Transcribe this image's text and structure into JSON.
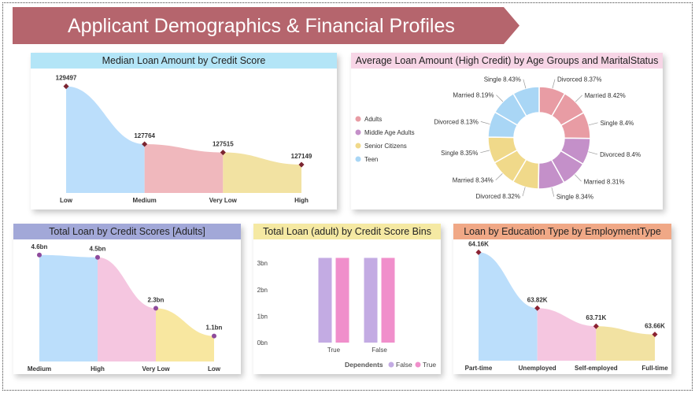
{
  "page": {
    "title": "Applicant Demographics & Financial Profiles",
    "banner_color": "#b5656d"
  },
  "chart_data": [
    {
      "id": "median_credit",
      "type": "area",
      "title": "Median Loan Amount by Credit Score",
      "header_color": "#b3e5f7",
      "categories": [
        "Low",
        "Medium",
        "Very Low",
        "High"
      ],
      "values": [
        129497,
        127764,
        127515,
        127149
      ],
      "value_labels": [
        "129497",
        "127764",
        "127515",
        "127149"
      ],
      "ylim": [
        126300,
        129700
      ],
      "colors": [
        "#bbdefb",
        "#f0b8bd",
        "#f2e2a2",
        "#d5a3c8"
      ],
      "marker_color": "#7a2430"
    },
    {
      "id": "avg_age_marital",
      "type": "pie",
      "title": "Average Loan Amount (High Credit) by Age Groups and MaritalStatus",
      "header_color": "#f7d5e6",
      "legend": [
        {
          "name": "Adults",
          "color": "#e89ca4"
        },
        {
          "name": "Middle Age Adults",
          "color": "#c490c9"
        },
        {
          "name": "Senior Citizens",
          "color": "#f0d98a"
        },
        {
          "name": "Teen",
          "color": "#a9d6f5"
        }
      ],
      "slices": [
        {
          "label": "Divorced 8.37%",
          "value": 8.37,
          "group": "Adults"
        },
        {
          "label": "Married 8.42%",
          "value": 8.42,
          "group": "Adults"
        },
        {
          "label": "Single 8.4%",
          "value": 8.4,
          "group": "Adults"
        },
        {
          "label": "Divorced 8.4%",
          "value": 8.4,
          "group": "Middle Age Adults"
        },
        {
          "label": "Married 8.31%",
          "value": 8.31,
          "group": "Middle Age Adults"
        },
        {
          "label": "Single 8.34%",
          "value": 8.34,
          "group": "Middle Age Adults"
        },
        {
          "label": "Divorced 8.32%",
          "value": 8.32,
          "group": "Senior Citizens"
        },
        {
          "label": "Married 8.34%",
          "value": 8.34,
          "group": "Senior Citizens"
        },
        {
          "label": "Single 8.35%",
          "value": 8.35,
          "group": "Senior Citizens"
        },
        {
          "label": "Divorced 8.13%",
          "value": 8.13,
          "group": "Teen"
        },
        {
          "label": "Married 8.19%",
          "value": 8.19,
          "group": "Teen"
        },
        {
          "label": "Single 8.43%",
          "value": 8.43,
          "group": "Teen"
        }
      ]
    },
    {
      "id": "total_adults",
      "type": "area",
      "title": "Total Loan by Credit Scores [Adults]",
      "header_color": "#a2a8d8",
      "categories": [
        "Medium",
        "High",
        "Very Low",
        "Low"
      ],
      "values": [
        4.6,
        4.5,
        2.3,
        1.1
      ],
      "value_labels": [
        "4.6bn",
        "4.5bn",
        "2.3bn",
        "1.1bn"
      ],
      "ylim": [
        0,
        5
      ],
      "colors": [
        "#bbdefb",
        "#f5c6e0",
        "#f8e7a0",
        "#c49ac8"
      ],
      "marker_color": "#8e4a9c"
    },
    {
      "id": "total_bins",
      "type": "bar",
      "title": "Total Loan (adult) by Credit Score Bins",
      "header_color": "#f5e9a3",
      "categories": [
        "True",
        "False"
      ],
      "series": [
        {
          "name": "False",
          "values": [
            3.2,
            3.2
          ],
          "color": "#c3abe3"
        },
        {
          "name": "True",
          "values": [
            3.2,
            3.2
          ],
          "color": "#f08fcb"
        }
      ],
      "y_ticks": [
        "0bn",
        "1bn",
        "2bn",
        "3bn"
      ],
      "ylim": [
        0,
        3.6
      ],
      "legend_title": "Dependents"
    },
    {
      "id": "edu_employment",
      "type": "area",
      "title": "Loan by Education Type by EmploymentType",
      "header_color": "#f0a886",
      "categories": [
        "Part-time",
        "Unemployed",
        "Self-employed",
        "Full-time"
      ],
      "values": [
        64.16,
        63.82,
        63.71,
        63.66
      ],
      "value_labels": [
        "64.16K",
        "63.82K",
        "63.71K",
        "63.66K"
      ],
      "ylim": [
        63.5,
        64.2
      ],
      "colors": [
        "#bbdefb",
        "#f5c6e0",
        "#f2e2a2",
        "#c49ac8"
      ],
      "marker_color": "#8b2232"
    }
  ]
}
